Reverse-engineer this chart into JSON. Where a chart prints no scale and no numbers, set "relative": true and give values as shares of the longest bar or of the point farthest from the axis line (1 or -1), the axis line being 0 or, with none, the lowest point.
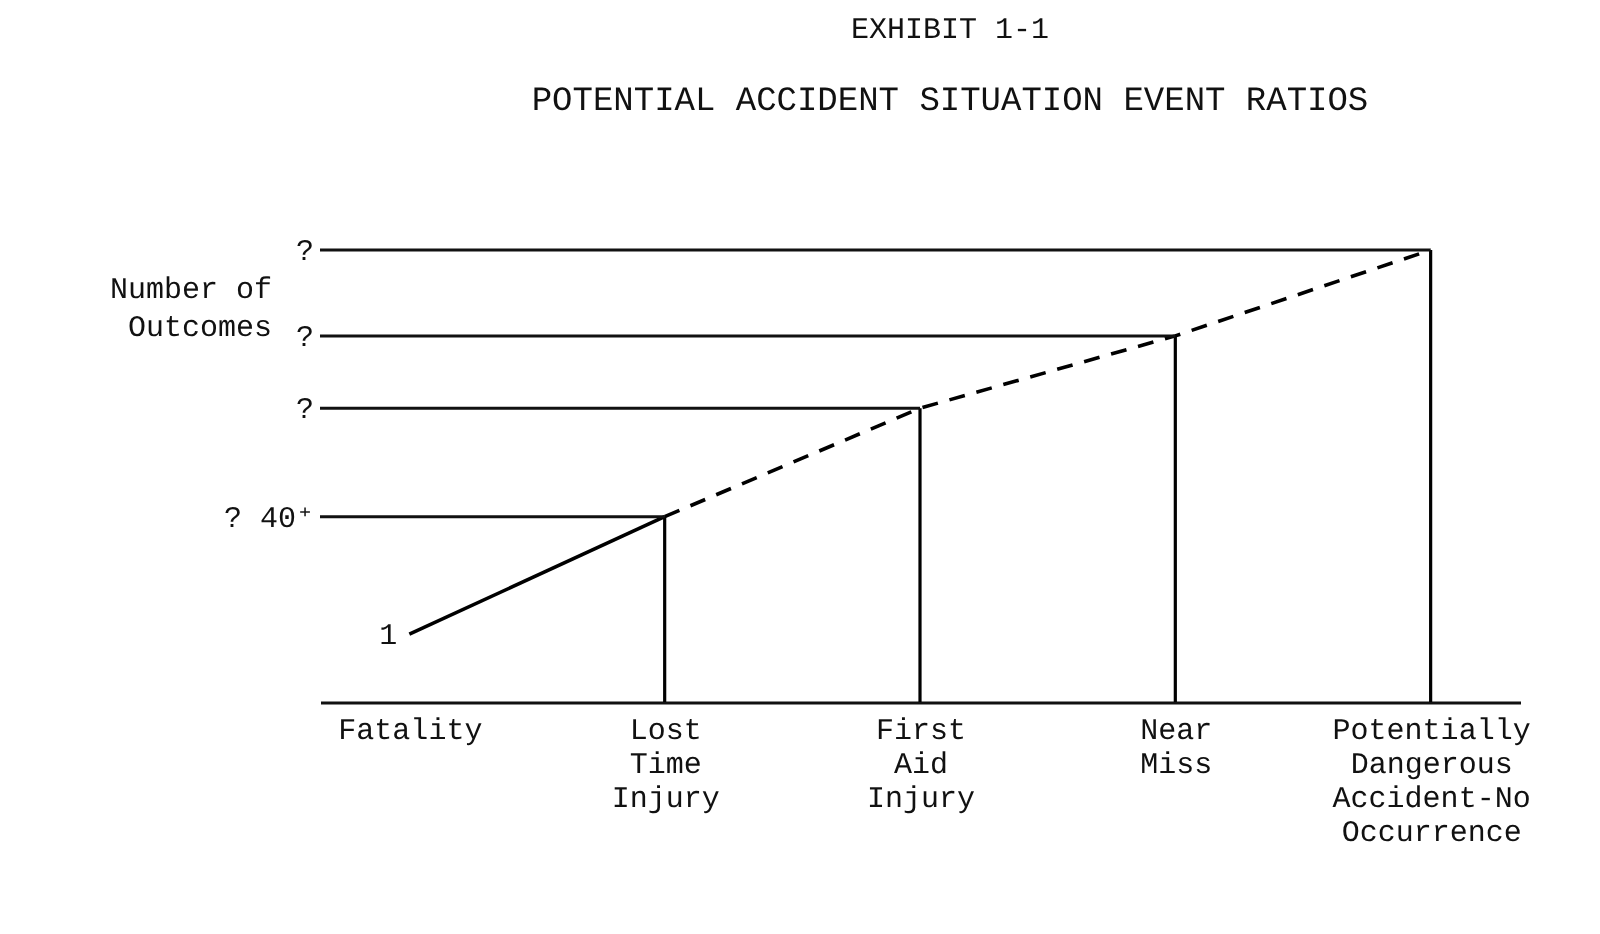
{
  "chart_data": {
    "type": "line",
    "title": "EXHIBIT 1-1",
    "subtitle": "POTENTIAL ACCIDENT SITUATION EVENT RATIOS",
    "ylabel": "Number of Outcomes",
    "relative": true,
    "categories": [
      "Fatality",
      "Lost Time Injury",
      "First Aid Injury",
      "Near Miss",
      "Potentially Dangerous Accident-No Occurrence"
    ],
    "series": [
      {
        "color": "#000000",
        "line_style": "solid",
        "values": [
          0.15,
          0.41,
          null,
          null,
          null
        ]
      },
      {
        "color": "#000000",
        "line_style": "dashed",
        "values": [
          null,
          0.41,
          0.65,
          0.81,
          1
        ]
      },
      {
        "type": "bar",
        "color": "#000000",
        "values": [
          null,
          0.41,
          0.65,
          0.81,
          1
        ]
      }
    ],
    "annotations": [
      {
        "text": "1",
        "x": "Fatality",
        "y": 0.15
      }
    ],
    "ref_lines": [
      {
        "axis": "y",
        "value": 0.41,
        "label": "? 40⁺"
      },
      {
        "axis": "y",
        "value": 0.65,
        "label": "?"
      },
      {
        "axis": "y",
        "value": 0.81,
        "label": "?"
      },
      {
        "axis": "y",
        "value": 1,
        "label": "?"
      }
    ],
    "marker": "none"
  }
}
